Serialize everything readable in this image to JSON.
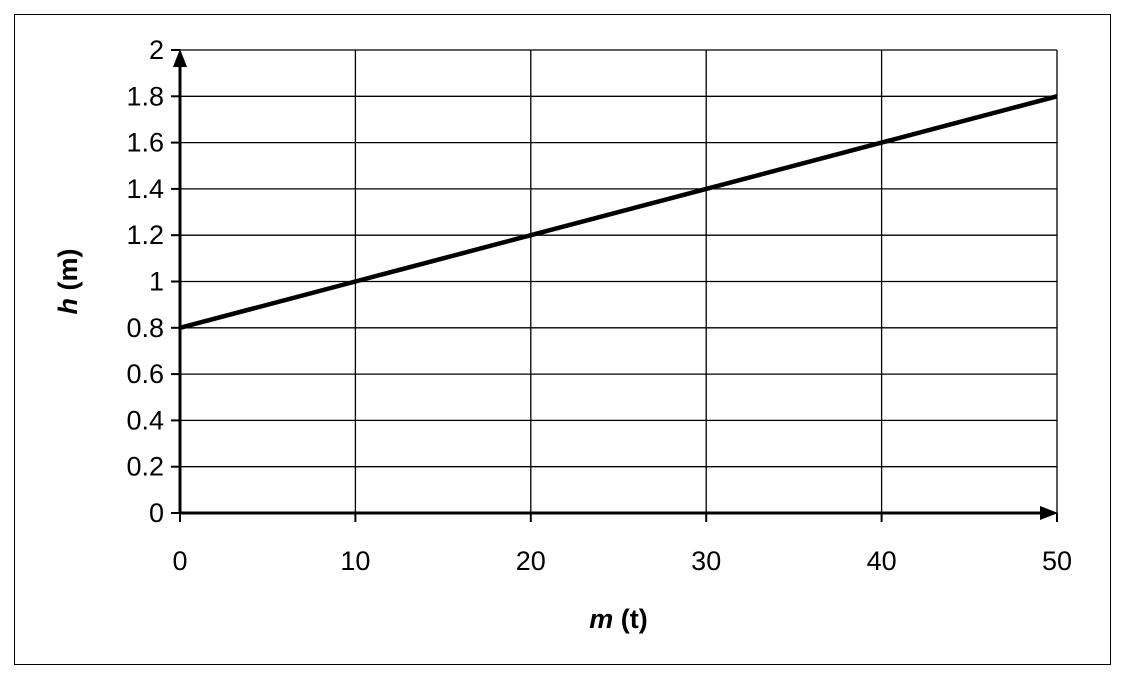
{
  "chart_data": {
    "type": "line",
    "title": "",
    "xlabel": {
      "var": "m",
      "unit": " (t)"
    },
    "ylabel": {
      "var": "h",
      "unit": " (m)"
    },
    "xlim": [
      0,
      50
    ],
    "ylim": [
      0,
      2
    ],
    "x_ticks": [
      0,
      10,
      20,
      30,
      40,
      50
    ],
    "y_ticks": [
      0,
      0.2,
      0.4,
      0.6,
      0.8,
      1,
      1.2,
      1.4,
      1.6,
      1.8,
      2
    ],
    "grid": true,
    "legend": "none",
    "series": [
      {
        "x": [
          0,
          10,
          20,
          30,
          40,
          50
        ],
        "y": [
          0.8,
          1.0,
          1.2,
          1.4,
          1.6,
          1.8
        ],
        "color": "#000000"
      }
    ]
  }
}
